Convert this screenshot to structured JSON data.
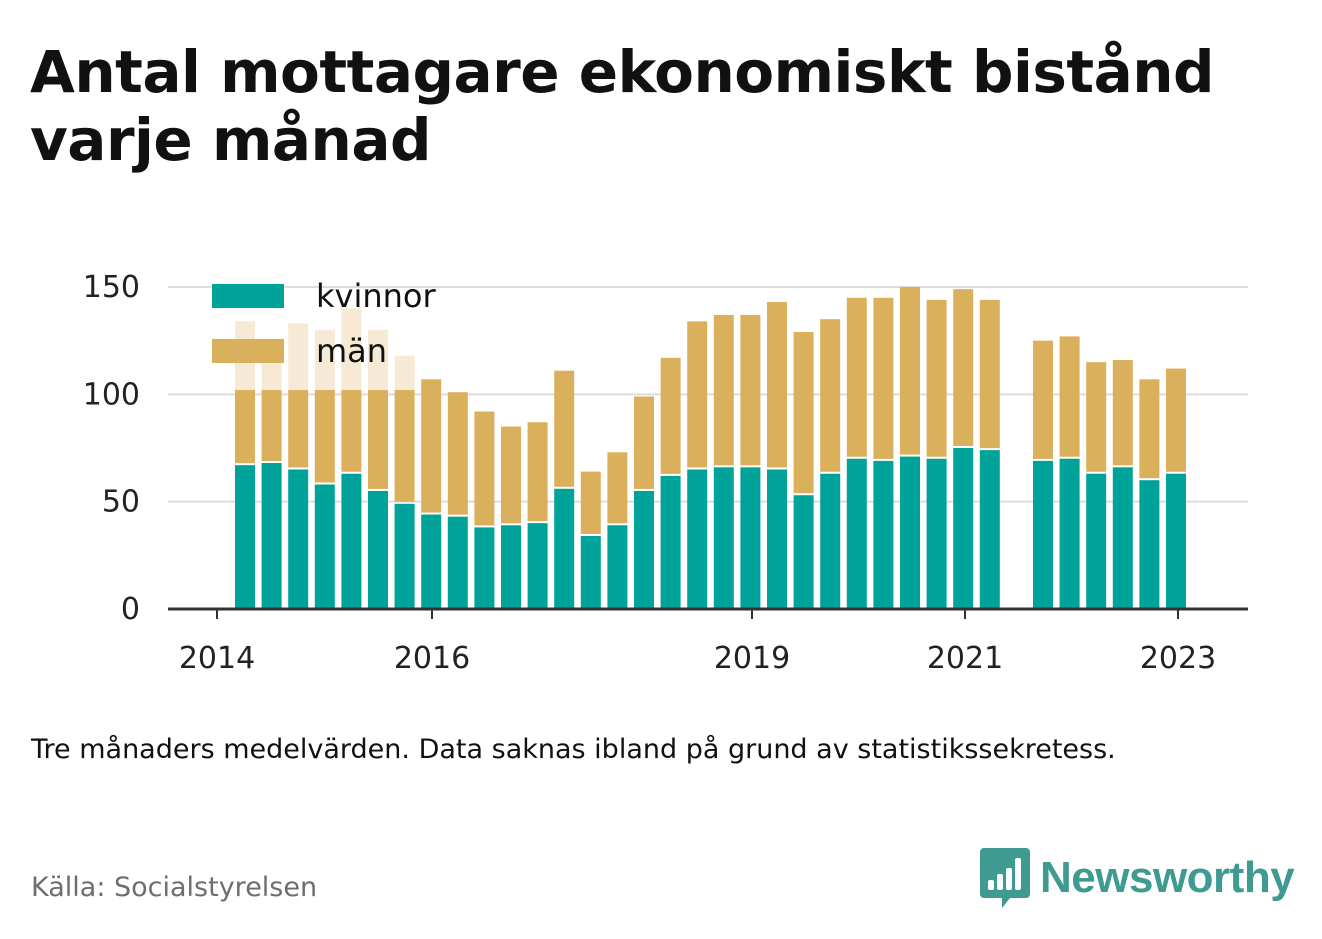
{
  "title": "Antal mottagare ekonomiskt bistånd varje månad",
  "note": "Tre månaders medelvärden. Data saknas ibland på grund av statistikssekretess.",
  "source": "Källa: Socialstyrelsen",
  "brand": {
    "name": "Newsworthy"
  },
  "colors": {
    "kvinnor": "#00a39a",
    "man": "#dbb05c",
    "man_faded": "#f6ead6",
    "grid": "#dcdcdc",
    "axis": "#333333",
    "text": "#111111",
    "source": "#6e6e6e",
    "brand": "#3f9a92"
  },
  "chart_data": {
    "type": "bar",
    "stacked": true,
    "ylim": [
      0,
      150
    ],
    "yticks": [
      0,
      50,
      100,
      150
    ],
    "xticks": [
      "2014",
      "2016",
      "2019",
      "2021",
      "2023"
    ],
    "legend": {
      "position": "top-left",
      "entries": [
        "kvinnor",
        "män"
      ]
    },
    "grid": true,
    "series": [
      {
        "name": "kvinnor",
        "values": [
          67,
          68,
          65,
          58,
          63,
          55,
          49,
          44,
          43,
          38,
          39,
          40,
          56,
          34,
          39,
          55,
          62,
          65,
          66,
          66,
          65,
          53,
          63,
          70,
          69,
          71,
          70,
          75,
          74,
          null,
          69,
          70,
          63,
          66,
          60,
          63
        ]
      },
      {
        "name": "män",
        "values": [
          67,
          55,
          68,
          72,
          77,
          75,
          69,
          63,
          58,
          54,
          46,
          47,
          55,
          30,
          34,
          44,
          55,
          69,
          71,
          71,
          78,
          76,
          72,
          75,
          76,
          79,
          74,
          74,
          70,
          null,
          56,
          57,
          52,
          50,
          47,
          49
        ]
      }
    ]
  }
}
